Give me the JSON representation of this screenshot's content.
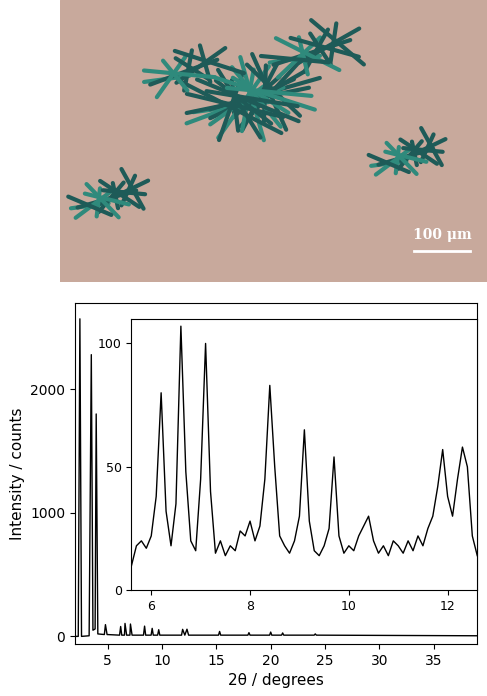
{
  "micrograph": {
    "scale_bar": "100 μm"
  },
  "chart_data": [
    {
      "type": "line",
      "x_label": "2θ / degrees",
      "y_label": "Intensity / counts",
      "x": [
        2.0,
        2.3,
        2.45,
        2.6,
        3.3,
        3.5,
        3.65,
        3.85,
        3.95,
        4.1,
        4.7,
        4.8,
        4.95,
        6.1,
        6.2,
        6.3,
        6.55,
        6.6,
        6.75,
        7.05,
        7.1,
        7.25,
        8.3,
        8.4,
        8.5,
        9.0,
        9.1,
        9.2,
        9.6,
        9.7,
        9.8,
        11.8,
        11.9,
        12.1,
        12.3,
        12.45,
        15.2,
        15.3,
        15.4,
        17.9,
        18.0,
        18.1,
        19.9,
        20.0,
        20.1,
        21.0,
        21.1,
        21.2,
        24.0,
        24.1,
        24.2,
        39.0
      ],
      "values": [
        0,
        0,
        2570,
        0,
        5,
        2280,
        50,
        60,
        1800,
        20,
        15,
        95,
        15,
        10,
        80,
        10,
        10,
        105,
        10,
        10,
        100,
        10,
        10,
        83,
        10,
        10,
        65,
        10,
        10,
        54,
        10,
        10,
        57,
        10,
        58,
        10,
        10,
        40,
        10,
        10,
        30,
        10,
        10,
        35,
        10,
        10,
        28,
        10,
        10,
        20,
        10,
        5
      ],
      "color": "#000000",
      "xlim": [
        2,
        39
      ],
      "xticks": [
        5,
        10,
        15,
        20,
        25,
        30,
        35
      ],
      "ylim": [
        -60,
        2700
      ],
      "yticks": [
        0,
        1000,
        2000
      ]
    },
    {
      "type": "line",
      "x": [
        5.6,
        5.7,
        5.8,
        5.9,
        6.0,
        6.1,
        6.2,
        6.3,
        6.4,
        6.5,
        6.6,
        6.7,
        6.8,
        6.9,
        7.0,
        7.1,
        7.2,
        7.3,
        7.4,
        7.5,
        7.6,
        7.7,
        7.8,
        7.9,
        8.0,
        8.1,
        8.2,
        8.3,
        8.4,
        8.5,
        8.6,
        8.7,
        8.8,
        8.9,
        9.0,
        9.1,
        9.2,
        9.3,
        9.4,
        9.5,
        9.6,
        9.7,
        9.8,
        9.9,
        10.0,
        10.1,
        10.2,
        10.3,
        10.4,
        10.5,
        10.6,
        10.7,
        10.8,
        10.9,
        11.0,
        11.1,
        11.2,
        11.3,
        11.4,
        11.5,
        11.6,
        11.7,
        11.8,
        11.9,
        12.0,
        12.1,
        12.2,
        12.3,
        12.4,
        12.5,
        12.6
      ],
      "values": [
        10,
        18,
        20,
        17,
        22,
        38,
        80,
        32,
        18,
        35,
        107,
        48,
        20,
        16,
        45,
        100,
        40,
        15,
        20,
        14,
        18,
        16,
        24,
        22,
        28,
        20,
        26,
        45,
        83,
        50,
        22,
        18,
        15,
        20,
        30,
        65,
        28,
        16,
        14,
        18,
        25,
        54,
        22,
        15,
        18,
        16,
        22,
        26,
        30,
        20,
        15,
        18,
        14,
        20,
        18,
        15,
        20,
        16,
        22,
        18,
        25,
        30,
        42,
        57,
        38,
        30,
        45,
        58,
        50,
        22,
        14
      ],
      "color": "#000000",
      "xlim": [
        5.6,
        12.6
      ],
      "xticks": [
        6,
        8,
        10,
        12
      ],
      "ylim": [
        0,
        110
      ],
      "yticks": [
        0,
        50,
        100
      ]
    }
  ]
}
